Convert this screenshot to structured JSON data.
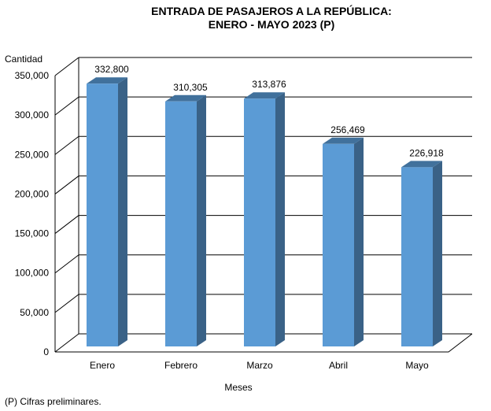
{
  "chart_data": {
    "type": "bar",
    "title_line1": "ENTRADA DE PASAJEROS A LA REPÚBLICA:",
    "title_line2": "ENERO - MAYO 2023 (P)",
    "xlabel": "Meses",
    "ylabel": "Cantidad",
    "categories": [
      "Enero",
      "Febrero",
      "Marzo",
      "Abril",
      "Mayo"
    ],
    "values": [
      332800,
      310305,
      313876,
      256469,
      226918
    ],
    "value_labels": [
      "332,800",
      "310,305",
      "313,876",
      "256,469",
      "226,918"
    ],
    "ylim": [
      0,
      350000
    ],
    "yticks": [
      0,
      50000,
      100000,
      150000,
      200000,
      250000,
      300000,
      350000
    ],
    "ytick_labels": [
      "0",
      "50,000",
      "100,000",
      "150,000",
      "200,000",
      "250,000",
      "300,000",
      "350,000"
    ],
    "grid": true,
    "bar_color": "#5B9BD5",
    "bar_top_color": "#41719C",
    "bar_side_color": "#3A6287"
  },
  "footnote": "(P) Cifras  preliminares."
}
